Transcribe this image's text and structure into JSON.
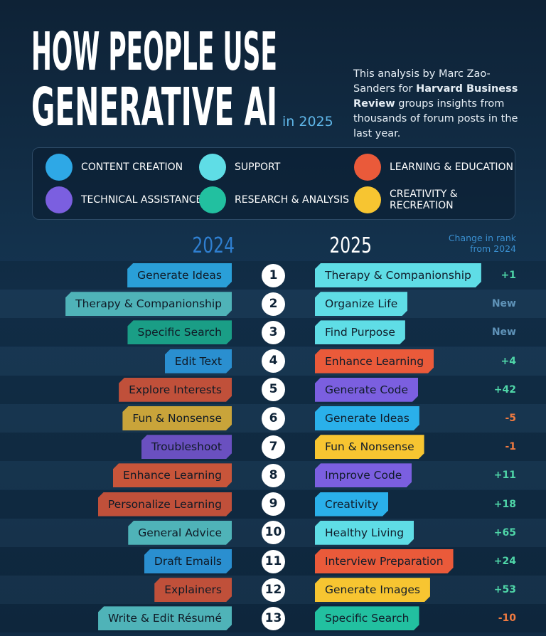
{
  "header": {
    "title_lines": [
      "HOW PEOPLE USE",
      "GENERATIVE AI"
    ],
    "title_suffix": "in 2025",
    "description": {
      "before": "This analysis by Marc Zao-Sanders for",
      "bold": "Harvard Business Review",
      "after": "groups insights from thousands of forum posts in the last year."
    }
  },
  "legend": [
    {
      "label": "CONTENT CREATION",
      "color": "#2ea8e6"
    },
    {
      "label": "SUPPORT",
      "color": "#5fdde6"
    },
    {
      "label": "LEARNING & EDUCATION",
      "color": "#ea5a3a"
    },
    {
      "label": "TECHNICAL ASSISTANCE",
      "color": "#7b5fe0"
    },
    {
      "label": "RESEARCH & ANALYSIS",
      "color": "#22c0a0"
    },
    {
      "label": "CREATIVITY & RECREATION",
      "color": "#f7c531"
    }
  ],
  "table": {
    "headers": {
      "left": "2024",
      "right": "2025",
      "change": "Change in rank from 2024"
    },
    "rows": [
      {
        "rank": 1,
        "y2024": {
          "text": "Generate Ideas",
          "color": "#2a9fd8"
        },
        "y2025": {
          "text": "Therapy & Companionship",
          "color": "#5fdde6"
        },
        "change": {
          "text": "+1",
          "color": "#4fd6a8"
        }
      },
      {
        "rank": 2,
        "y2024": {
          "text": "Therapy & Companionship",
          "color": "#4fb3b8"
        },
        "y2025": {
          "text": "Organize Life",
          "color": "#5fdde6"
        },
        "change": {
          "text": "New",
          "color": "#5f93b8"
        }
      },
      {
        "rank": 3,
        "y2024": {
          "text": "Specific Search",
          "color": "#1a9e86"
        },
        "y2025": {
          "text": "Find Purpose",
          "color": "#5fdde6"
        },
        "change": {
          "text": "New",
          "color": "#5f93b8"
        }
      },
      {
        "rank": 4,
        "y2024": {
          "text": "Edit Text",
          "color": "#2a8fd0"
        },
        "y2025": {
          "text": "Enhance Learning",
          "color": "#ea5a3a"
        },
        "change": {
          "text": "+4",
          "color": "#4fd6a8"
        }
      },
      {
        "rank": 5,
        "y2024": {
          "text": "Explore Interests",
          "color": "#c0503a"
        },
        "y2025": {
          "text": "Generate Code",
          "color": "#7b5fe0"
        },
        "change": {
          "text": "+42",
          "color": "#4fd6a8"
        }
      },
      {
        "rank": 6,
        "y2024": {
          "text": "Fun & Nonsense",
          "color": "#c9a43a"
        },
        "y2025": {
          "text": "Generate Ideas",
          "color": "#2ab0ea"
        },
        "change": {
          "text": "-5",
          "color": "#f07a40"
        }
      },
      {
        "rank": 7,
        "y2024": {
          "text": "Troubleshoot",
          "color": "#6a50c0"
        },
        "y2025": {
          "text": "Fun & Nonsense",
          "color": "#f7c531"
        },
        "change": {
          "text": "-1",
          "color": "#f07a40"
        }
      },
      {
        "rank": 8,
        "y2024": {
          "text": "Enhance Learning",
          "color": "#c8553a"
        },
        "y2025": {
          "text": "Improve Code",
          "color": "#7b5fe0"
        },
        "change": {
          "text": "+11",
          "color": "#4fd6a8"
        }
      },
      {
        "rank": 9,
        "y2024": {
          "text": "Personalize Learning",
          "color": "#c0503a"
        },
        "y2025": {
          "text": "Creativity",
          "color": "#2ab0ea"
        },
        "change": {
          "text": "+18",
          "color": "#4fd6a8"
        }
      },
      {
        "rank": 10,
        "y2024": {
          "text": "General Advice",
          "color": "#4fb3b8"
        },
        "y2025": {
          "text": "Healthy Living",
          "color": "#5fdde6"
        },
        "change": {
          "text": "+65",
          "color": "#4fd6a8"
        }
      },
      {
        "rank": 11,
        "y2024": {
          "text": "Draft Emails",
          "color": "#2a8fd0"
        },
        "y2025": {
          "text": "Interview Preparation",
          "color": "#ea5a3a"
        },
        "change": {
          "text": "+24",
          "color": "#4fd6a8"
        }
      },
      {
        "rank": 12,
        "y2024": {
          "text": "Explainers",
          "color": "#c0503a"
        },
        "y2025": {
          "text": "Generate Images",
          "color": "#f7c531"
        },
        "change": {
          "text": "+53",
          "color": "#4fd6a8"
        }
      },
      {
        "rank": 13,
        "y2024": {
          "text": "Write & Edit Résumé",
          "color": "#4fb3b8"
        },
        "y2025": {
          "text": "Specific Search",
          "color": "#22c0a0"
        },
        "change": {
          "text": "-10",
          "color": "#f07a40"
        }
      }
    ]
  }
}
